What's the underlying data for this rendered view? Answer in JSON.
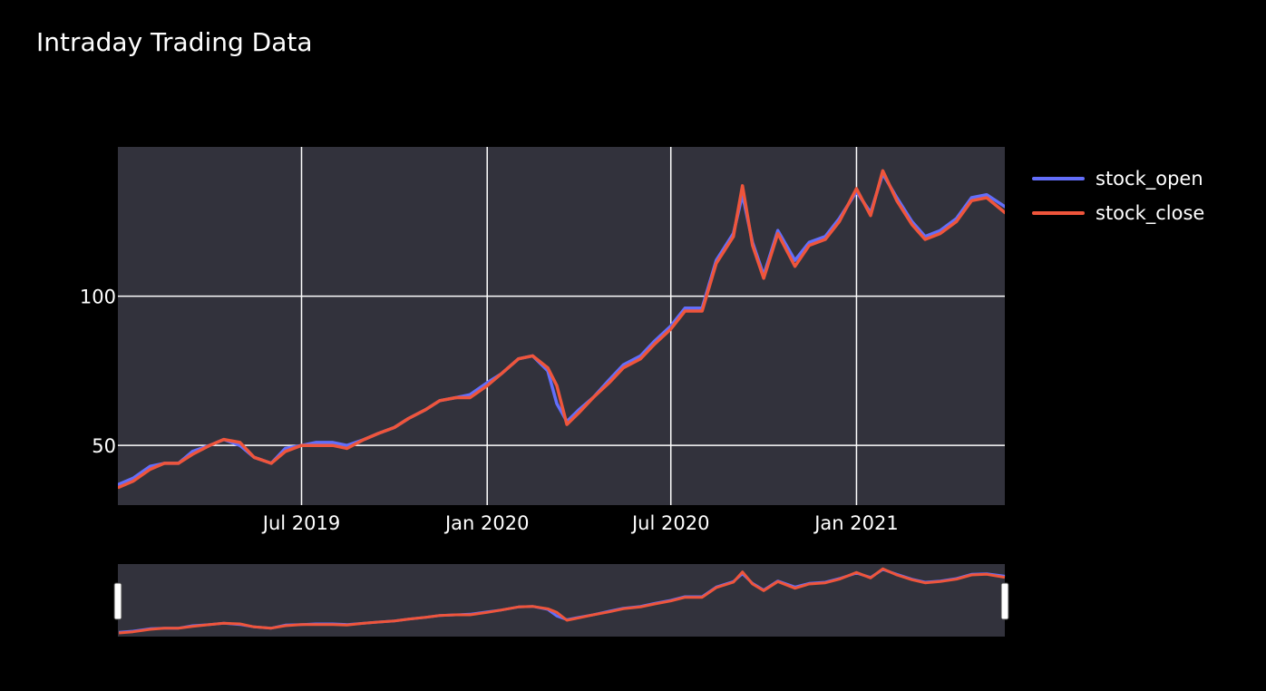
{
  "title": "Intraday Trading Data",
  "colors": {
    "background": "#000000",
    "plot_bg": "#32323c",
    "grid": "#ffffff",
    "text": "#ffffff",
    "open": "#636efa",
    "close": "#ef553b"
  },
  "chart_data": {
    "type": "line",
    "title": "Intraday Trading Data",
    "xlabel": "",
    "ylabel": "",
    "x_axis": {
      "type": "date",
      "range": [
        "2018-12-31",
        "2021-05-28"
      ],
      "ticks": [
        "2019-07-01",
        "2020-01-01",
        "2020-07-01",
        "2021-01-01"
      ],
      "tick_labels": [
        "Jul 2019",
        "Jan 2020",
        "Jul 2020",
        "Jan 2021"
      ]
    },
    "y_axis": {
      "range": [
        30,
        150
      ],
      "ticks": [
        50,
        100
      ],
      "tick_labels": [
        "50",
        "100"
      ]
    },
    "grid": true,
    "legend": "right",
    "rangeslider": true,
    "series": [
      {
        "name": "stock_open",
        "x": [
          "2019-01-01",
          "2019-01-15",
          "2019-02-01",
          "2019-02-15",
          "2019-03-01",
          "2019-03-15",
          "2019-04-01",
          "2019-04-15",
          "2019-05-01",
          "2019-05-15",
          "2019-06-01",
          "2019-06-15",
          "2019-07-01",
          "2019-07-15",
          "2019-08-01",
          "2019-08-15",
          "2019-09-01",
          "2019-09-15",
          "2019-10-01",
          "2019-10-15",
          "2019-11-01",
          "2019-11-15",
          "2019-12-01",
          "2019-12-15",
          "2020-01-01",
          "2020-01-15",
          "2020-02-01",
          "2020-02-15",
          "2020-03-01",
          "2020-03-10",
          "2020-03-20",
          "2020-04-01",
          "2020-04-15",
          "2020-05-01",
          "2020-05-15",
          "2020-06-01",
          "2020-06-15",
          "2020-07-01",
          "2020-07-15",
          "2020-08-01",
          "2020-08-15",
          "2020-09-01",
          "2020-09-10",
          "2020-09-20",
          "2020-10-01",
          "2020-10-15",
          "2020-11-01",
          "2020-11-15",
          "2020-12-01",
          "2020-12-15",
          "2021-01-01",
          "2021-01-15",
          "2021-01-27",
          "2021-02-10",
          "2021-02-25",
          "2021-03-10",
          "2021-03-25",
          "2021-04-10",
          "2021-04-25",
          "2021-05-10",
          "2021-05-28"
        ],
        "values": [
          37,
          39,
          43,
          44,
          44,
          48,
          50,
          52,
          50,
          46,
          44,
          49,
          50,
          51,
          51,
          50,
          52,
          54,
          56,
          59,
          62,
          65,
          66,
          67,
          71,
          74,
          79,
          80,
          75,
          64,
          58,
          62,
          66,
          72,
          77,
          80,
          85,
          90,
          96,
          96,
          112,
          121,
          134,
          118,
          107,
          122,
          112,
          118,
          120,
          126,
          135,
          128,
          141,
          133,
          125,
          120,
          122,
          126,
          133,
          134,
          130
        ]
      },
      {
        "name": "stock_close",
        "x": [
          "2019-01-01",
          "2019-01-15",
          "2019-02-01",
          "2019-02-15",
          "2019-03-01",
          "2019-03-15",
          "2019-04-01",
          "2019-04-15",
          "2019-05-01",
          "2019-05-15",
          "2019-06-01",
          "2019-06-15",
          "2019-07-01",
          "2019-07-15",
          "2019-08-01",
          "2019-08-15",
          "2019-09-01",
          "2019-09-15",
          "2019-10-01",
          "2019-10-15",
          "2019-11-01",
          "2019-11-15",
          "2019-12-01",
          "2019-12-15",
          "2020-01-01",
          "2020-01-15",
          "2020-02-01",
          "2020-02-15",
          "2020-03-01",
          "2020-03-10",
          "2020-03-20",
          "2020-04-01",
          "2020-04-15",
          "2020-05-01",
          "2020-05-15",
          "2020-06-01",
          "2020-06-15",
          "2020-07-01",
          "2020-07-15",
          "2020-08-01",
          "2020-08-15",
          "2020-09-01",
          "2020-09-10",
          "2020-09-20",
          "2020-10-01",
          "2020-10-15",
          "2020-11-01",
          "2020-11-15",
          "2020-12-01",
          "2020-12-15",
          "2021-01-01",
          "2021-01-15",
          "2021-01-27",
          "2021-02-10",
          "2021-02-25",
          "2021-03-10",
          "2021-03-25",
          "2021-04-10",
          "2021-04-25",
          "2021-05-10",
          "2021-05-28"
        ],
        "values": [
          36,
          38,
          42,
          44,
          44,
          47,
          50,
          52,
          51,
          46,
          44,
          48,
          50,
          50,
          50,
          49,
          52,
          54,
          56,
          59,
          62,
          65,
          66,
          66,
          70,
          74,
          79,
          80,
          76,
          70,
          57,
          61,
          66,
          71,
          76,
          79,
          84,
          89,
          95,
          95,
          111,
          120,
          137,
          117,
          106,
          121,
          110,
          117,
          119,
          125,
          136,
          127,
          142,
          132,
          124,
          119,
          121,
          125,
          132,
          133,
          128
        ]
      }
    ]
  }
}
